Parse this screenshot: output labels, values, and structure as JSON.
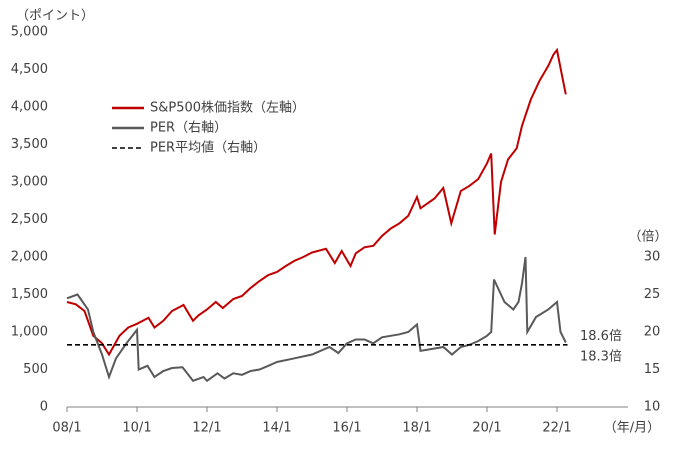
{
  "chart_data": {
    "type": "line",
    "y_unit": "（ポイント）",
    "y2_unit": "（倍）",
    "x_unit": "（年/月）",
    "xlim": [
      2008,
      2024
    ],
    "xticks": [
      {
        "value": 2008,
        "label": "08/1"
      },
      {
        "value": 2010,
        "label": "10/1"
      },
      {
        "value": 2012,
        "label": "12/1"
      },
      {
        "value": 2014,
        "label": "14/1"
      },
      {
        "value": 2016,
        "label": "16/1"
      },
      {
        "value": 2018,
        "label": "18/1"
      },
      {
        "value": 2020,
        "label": "20/1"
      },
      {
        "value": 2022,
        "label": "22/1"
      }
    ],
    "ylim": [
      0,
      5000
    ],
    "yticks": [
      0,
      500,
      {
        "value": 1000,
        "label": "1,000"
      },
      {
        "value": 1500,
        "label": "1,500"
      },
      {
        "value": 2000,
        "label": "2,000"
      },
      {
        "value": 2500,
        "label": "2,500"
      },
      {
        "value": 3000,
        "label": "3,000"
      },
      {
        "value": 3500,
        "label": "3,500"
      },
      {
        "value": 4000,
        "label": "4,000"
      },
      {
        "value": 4500,
        "label": "4,500"
      },
      {
        "value": 5000,
        "label": "5,000"
      }
    ],
    "y2lim": [
      10,
      60
    ],
    "y2ticks": [
      10,
      15,
      20,
      25,
      30
    ],
    "legend": "upper left",
    "series": [
      {
        "name": "S&P500株価指数（左軸）",
        "color": "#c00000",
        "style": "solid",
        "x": [
          2008.0,
          2008.25,
          2008.5,
          2008.75,
          2009.0,
          2009.2,
          2009.5,
          2009.75,
          2010.0,
          2010.33,
          2010.5,
          2010.75,
          2011.0,
          2011.33,
          2011.6,
          2011.75,
          2012.0,
          2012.25,
          2012.45,
          2012.75,
          2013.0,
          2013.25,
          2013.5,
          2013.75,
          2014.0,
          2014.25,
          2014.5,
          2014.75,
          2015.0,
          2015.4,
          2015.65,
          2015.85,
          2016.1,
          2016.25,
          2016.5,
          2016.75,
          2017.0,
          2017.25,
          2017.5,
          2017.75,
          2018.0,
          2018.1,
          2018.5,
          2018.75,
          2018.98,
          2019.25,
          2019.5,
          2019.75,
          2020.0,
          2020.12,
          2020.22,
          2020.4,
          2020.6,
          2020.85,
          2021.0,
          2021.25,
          2021.5,
          2021.75,
          2021.9,
          2022.0,
          2022.15,
          2022.25
        ],
        "values": [
          1400,
          1370,
          1280,
          950,
          850,
          700,
          950,
          1060,
          1110,
          1190,
          1060,
          1150,
          1280,
          1360,
          1150,
          1220,
          1300,
          1400,
          1320,
          1440,
          1480,
          1590,
          1680,
          1760,
          1800,
          1880,
          1950,
          2000,
          2060,
          2110,
          1920,
          2080,
          1880,
          2050,
          2130,
          2150,
          2280,
          2380,
          2450,
          2550,
          2800,
          2650,
          2780,
          2920,
          2450,
          2880,
          2950,
          3040,
          3250,
          3380,
          2300,
          3000,
          3300,
          3450,
          3750,
          4100,
          4350,
          4550,
          4700,
          4760,
          4400,
          4170
        ]
      },
      {
        "name": "PER（右軸）",
        "color": "#595959",
        "style": "solid",
        "axis": "y2",
        "x": [
          2008.0,
          2008.3,
          2008.6,
          2008.75,
          2009.0,
          2009.2,
          2009.4,
          2009.7,
          2010.0,
          2010.05,
          2010.3,
          2010.5,
          2010.75,
          2011.0,
          2011.3,
          2011.6,
          2011.9,
          2012.0,
          2012.3,
          2012.5,
          2012.75,
          2013.0,
          2013.25,
          2013.5,
          2013.75,
          2014.0,
          2014.5,
          2015.0,
          2015.5,
          2015.75,
          2016.0,
          2016.25,
          2016.5,
          2016.75,
          2017.0,
          2017.5,
          2017.75,
          2018.0,
          2018.1,
          2018.5,
          2018.75,
          2019.0,
          2019.25,
          2019.5,
          2019.75,
          2020.0,
          2020.12,
          2020.2,
          2020.3,
          2020.5,
          2020.75,
          2020.9,
          2021.0,
          2021.1,
          2021.15,
          2021.4,
          2021.75,
          2022.0,
          2022.1,
          2022.25
        ],
        "values": [
          24.5,
          25,
          23,
          20,
          17,
          14,
          16.5,
          18.5,
          20.3,
          15,
          15.5,
          14,
          14.8,
          15.2,
          15.3,
          13.5,
          14,
          13.5,
          14.5,
          13.8,
          14.5,
          14.3,
          14.8,
          15,
          15.5,
          16,
          16.5,
          17,
          18,
          17.2,
          18.5,
          19,
          19,
          18.5,
          19.3,
          19.7,
          20,
          21,
          17.5,
          17.8,
          18,
          17,
          18,
          18.3,
          18.8,
          19.5,
          20,
          27,
          26,
          24,
          23,
          24,
          26.5,
          30,
          20,
          22,
          23,
          24,
          20,
          18.6
        ]
      },
      {
        "name": "PER平均値（右軸）",
        "color": "#000000",
        "style": "dashed",
        "axis": "y2",
        "x": [
          2008.0,
          2022.3
        ],
        "values": [
          18.3,
          18.3
        ]
      }
    ],
    "annotations": [
      {
        "text": "18.6倍",
        "value": 18.6
      },
      {
        "text": "18.3倍",
        "value": 18.3
      }
    ]
  }
}
